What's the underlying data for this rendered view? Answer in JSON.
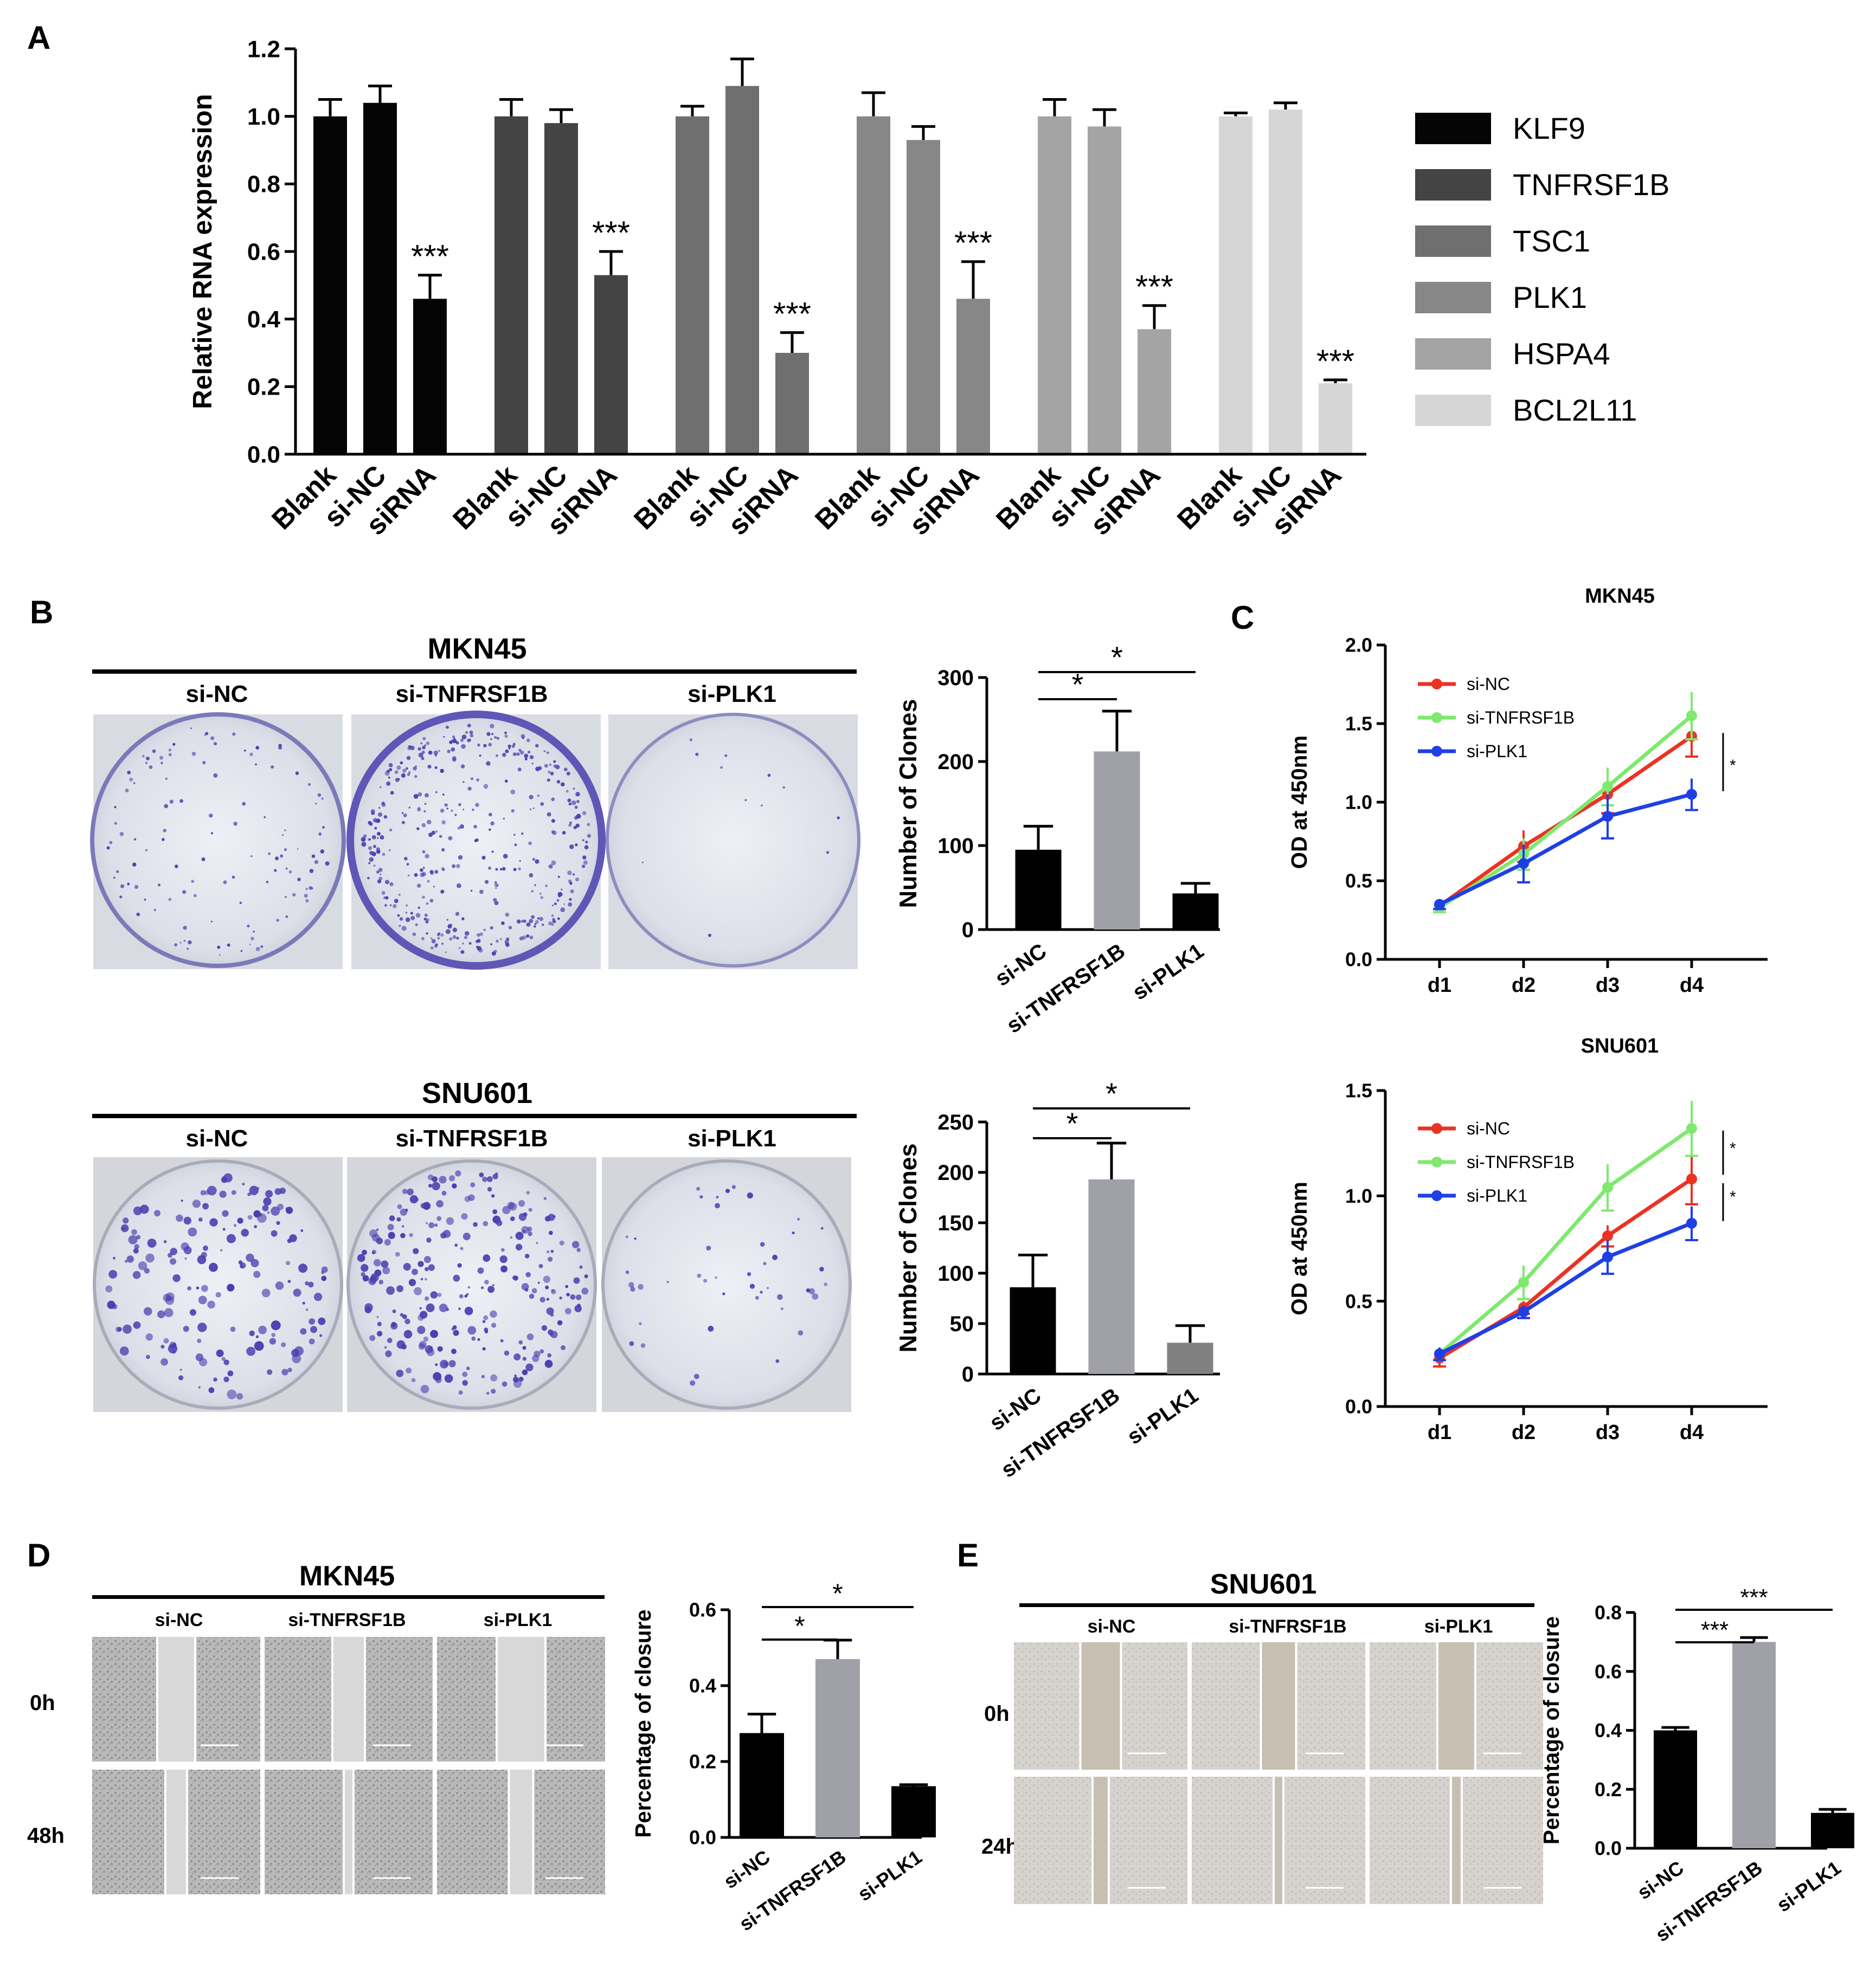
{
  "colors": {
    "KLF9": "#050505",
    "TNFRSF1B": "#444444",
    "TSC1": "#6f6f6f",
    "PLK1": "#878787",
    "HSPA4": "#a4a4a4",
    "BCL2L11": "#d6d6d6",
    "si_NC": "#ec3223",
    "si_TNFRSF1B": "#7ee96e",
    "si_PLK1": "#1f3fe6",
    "bar_black": "#000000",
    "bar_gray": "#a0a0a8",
    "bar_dark": "#808080",
    "crystal_violet": "#4b3fb0"
  },
  "panel_labels": {
    "A": "A",
    "B": "B",
    "C": "C",
    "D": "D",
    "E": "E"
  },
  "panelB": {
    "top_title": "MKN45",
    "bottom_title": "SNU601",
    "col_labels": [
      "si-NC",
      "si-TNFRSF1B",
      "si-PLK1"
    ]
  },
  "panelD": {
    "title": "MKN45",
    "col_labels": [
      "si-NC",
      "si-TNFRSF1B",
      "si-PLK1"
    ],
    "row_labels": [
      "0h",
      "48h"
    ]
  },
  "panelE": {
    "title": "SNU601",
    "col_labels": [
      "si-NC",
      "si-TNFRSF1B",
      "si-PLK1"
    ],
    "row_labels": [
      "0h",
      "24h"
    ]
  },
  "chart_data": [
    {
      "id": "A",
      "type": "bar",
      "ylabel": "Relative RNA expression",
      "ylim": [
        0,
        1.2
      ],
      "yticks": [
        "0.0",
        "0.2",
        "0.4",
        "0.6",
        "0.8",
        "1.0",
        "1.2"
      ],
      "categories": [
        "Blank",
        "si-NC",
        "siRNA"
      ],
      "legend_position": "right",
      "series": [
        {
          "name": "KLF9",
          "values": [
            1.0,
            1.04,
            0.46
          ],
          "errors": [
            0.05,
            0.05,
            0.07
          ],
          "sig": [
            "",
            "",
            "***"
          ]
        },
        {
          "name": "TNFRSF1B",
          "values": [
            1.0,
            0.98,
            0.53
          ],
          "errors": [
            0.05,
            0.04,
            0.07
          ],
          "sig": [
            "",
            "",
            "***"
          ]
        },
        {
          "name": "TSC1",
          "values": [
            1.0,
            1.09,
            0.3
          ],
          "errors": [
            0.03,
            0.08,
            0.06
          ],
          "sig": [
            "",
            "",
            "***"
          ]
        },
        {
          "name": "PLK1",
          "values": [
            1.0,
            0.93,
            0.46
          ],
          "errors": [
            0.07,
            0.04,
            0.11
          ],
          "sig": [
            "",
            "",
            "***"
          ]
        },
        {
          "name": "HSPA4",
          "values": [
            1.0,
            0.97,
            0.37
          ],
          "errors": [
            0.05,
            0.05,
            0.07
          ],
          "sig": [
            "",
            "",
            "***"
          ]
        },
        {
          "name": "BCL2L11",
          "values": [
            1.0,
            1.02,
            0.21
          ],
          "errors": [
            0.01,
            0.02,
            0.01
          ],
          "sig": [
            "",
            "",
            "***"
          ]
        }
      ]
    },
    {
      "id": "B-top",
      "type": "bar",
      "ylabel": "Number of Clones",
      "ylim": [
        0,
        300
      ],
      "yticks": [
        "0",
        "100",
        "200",
        "300"
      ],
      "categories": [
        "si-NC",
        "si-TNFRSF1B",
        "si-PLK1"
      ],
      "values": [
        95,
        212,
        43
      ],
      "errors": [
        28,
        48,
        12
      ],
      "sig": [
        "*",
        "*"
      ]
    },
    {
      "id": "B-bottom",
      "type": "bar",
      "ylabel": "Number of Clones",
      "ylim": [
        0,
        250
      ],
      "yticks": [
        "0",
        "50",
        "100",
        "150",
        "200",
        "250"
      ],
      "categories": [
        "si-NC",
        "si-TNFRSF1B",
        "si-PLK1"
      ],
      "values": [
        86,
        193,
        31
      ],
      "errors": [
        32,
        36,
        17
      ],
      "sig": [
        "*",
        "*"
      ]
    },
    {
      "id": "C-top",
      "type": "line",
      "title": "MKN45",
      "ylabel": "OD at 450nm",
      "ylim": [
        0,
        2.0
      ],
      "yticks": [
        "0.0",
        "0.5",
        "1.0",
        "1.5",
        "2.0"
      ],
      "x": [
        "d1",
        "d2",
        "d3",
        "d4"
      ],
      "legend_position": "top-left",
      "series": [
        {
          "name": "si-NC",
          "values": [
            0.34,
            0.72,
            1.05,
            1.42
          ],
          "errors": [
            0.04,
            0.1,
            0.12,
            0.13
          ]
        },
        {
          "name": "si-TNFRSF1B",
          "values": [
            0.33,
            0.67,
            1.1,
            1.55
          ],
          "errors": [
            0.03,
            0.1,
            0.12,
            0.15
          ]
        },
        {
          "name": "si-PLK1",
          "values": [
            0.35,
            0.61,
            0.91,
            1.05
          ],
          "errors": [
            0.03,
            0.12,
            0.14,
            0.1
          ]
        }
      ],
      "sig": [
        "*"
      ]
    },
    {
      "id": "C-bottom",
      "type": "line",
      "title": "SNU601",
      "ylabel": "OD at 450nm",
      "ylim": [
        0,
        1.5
      ],
      "yticks": [
        "0.0",
        "0.5",
        "1.0",
        "1.5"
      ],
      "x": [
        "d1",
        "d2",
        "d3",
        "d4"
      ],
      "legend_position": "top-left",
      "series": [
        {
          "name": "si-NC",
          "values": [
            0.23,
            0.47,
            0.81,
            1.08
          ],
          "errors": [
            0.04,
            0.03,
            0.05,
            0.12
          ]
        },
        {
          "name": "si-TNFRSF1B",
          "values": [
            0.25,
            0.59,
            1.04,
            1.32
          ],
          "errors": [
            0.03,
            0.08,
            0.11,
            0.13
          ]
        },
        {
          "name": "si-PLK1",
          "values": [
            0.25,
            0.45,
            0.71,
            0.87
          ],
          "errors": [
            0.03,
            0.03,
            0.08,
            0.08
          ]
        }
      ],
      "sig": [
        "*",
        "*"
      ]
    },
    {
      "id": "D",
      "type": "bar",
      "ylabel": "Percentage of closure",
      "ylim": [
        0,
        0.6
      ],
      "yticks": [
        "0.0",
        "0.2",
        "0.4",
        "0.6"
      ],
      "categories": [
        "si-NC",
        "si-TNFRSF1B",
        "si-PLK1"
      ],
      "values": [
        0.275,
        0.47,
        0.135
      ],
      "errors": [
        0.05,
        0.05,
        0.004
      ],
      "sig": [
        "*",
        "*"
      ]
    },
    {
      "id": "E",
      "type": "bar",
      "ylabel": "Percentage of closure",
      "ylim": [
        0,
        0.8
      ],
      "yticks": [
        "0.0",
        "0.2",
        "0.4",
        "0.6",
        "0.8"
      ],
      "categories": [
        "si-NC",
        "si-TNFRSF1B",
        "si-PLK1"
      ],
      "values": [
        0.4,
        0.7,
        0.12
      ],
      "errors": [
        0.01,
        0.015,
        0.012
      ],
      "sig": [
        "***",
        "***"
      ]
    }
  ]
}
